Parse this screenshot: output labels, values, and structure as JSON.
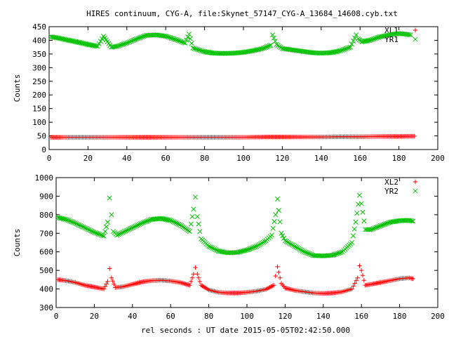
{
  "title": "HIRES continuum, CYG-A, file:Skynet_57147_CYG-A_13684_14608.cyb.txt",
  "xlabel": "rel seconds : UT date 2015-05-05T02:42:50.000",
  "colors": {
    "red": "#ff0000",
    "green": "#00c000",
    "axis": "#000000"
  },
  "chart_data": [
    {
      "type": "scatter",
      "ylabel": "Counts",
      "xlim": [
        0,
        200
      ],
      "ylim": [
        0,
        450
      ],
      "xticks": [
        0,
        20,
        40,
        60,
        80,
        100,
        120,
        140,
        160,
        180,
        200
      ],
      "yticks": [
        0,
        50,
        100,
        150,
        200,
        250,
        300,
        350,
        400,
        450
      ],
      "series": [
        {
          "name": "XL1",
          "marker": "+",
          "color": "#ff0000",
          "x": [
            1,
            10,
            20,
            30,
            40,
            50,
            60,
            70,
            80,
            90,
            100,
            110,
            120,
            130,
            140,
            150,
            160,
            170,
            180,
            188
          ],
          "y": [
            45,
            45,
            45,
            45,
            45,
            45,
            45,
            45,
            45,
            45,
            45,
            46,
            46,
            46,
            46,
            47,
            47,
            48,
            48,
            49
          ]
        },
        {
          "name": "YR1",
          "marker": "x",
          "color": "#00c000",
          "x": [
            1,
            5,
            10,
            15,
            20,
            25,
            28,
            30,
            32,
            35,
            40,
            45,
            50,
            55,
            60,
            65,
            70,
            72,
            74,
            77,
            80,
            85,
            90,
            95,
            100,
            105,
            110,
            114,
            115,
            117,
            120,
            125,
            130,
            135,
            140,
            145,
            150,
            155,
            158,
            159,
            161,
            165,
            170,
            175,
            180,
            183,
            186
          ],
          "y": [
            413,
            408,
            400,
            393,
            385,
            378,
            415,
            395,
            375,
            378,
            390,
            405,
            418,
            420,
            415,
            403,
            390,
            423,
            372,
            365,
            358,
            353,
            352,
            353,
            356,
            362,
            370,
            382,
            420,
            385,
            370,
            365,
            360,
            355,
            353,
            355,
            362,
            375,
            420,
            405,
            395,
            400,
            412,
            420,
            425,
            423,
            420
          ]
        }
      ]
    },
    {
      "type": "scatter",
      "ylabel": "Counts",
      "xlim": [
        0,
        200
      ],
      "ylim": [
        300,
        1000
      ],
      "xticks": [
        0,
        20,
        40,
        60,
        80,
        100,
        120,
        140,
        160,
        180,
        200
      ],
      "yticks": [
        300,
        400,
        500,
        600,
        700,
        800,
        900,
        1000
      ],
      "series": [
        {
          "name": "XL2",
          "marker": "+",
          "color": "#ff0000",
          "x": [
            1,
            5,
            10,
            15,
            20,
            25,
            27,
            28,
            29,
            31,
            35,
            40,
            45,
            50,
            55,
            60,
            65,
            70,
            72,
            73,
            74,
            76,
            80,
            85,
            90,
            95,
            100,
            105,
            110,
            114,
            115,
            116,
            118,
            120,
            125,
            130,
            135,
            140,
            145,
            150,
            155,
            158,
            159,
            160,
            162,
            165,
            170,
            175,
            180,
            185,
            187
          ],
          "y": [
            450,
            445,
            435,
            420,
            410,
            400,
            440,
            510,
            460,
            408,
            412,
            425,
            438,
            445,
            447,
            443,
            435,
            420,
            480,
            515,
            480,
            420,
            395,
            382,
            378,
            378,
            382,
            388,
            398,
            420,
            470,
            520,
            430,
            405,
            392,
            385,
            378,
            376,
            378,
            385,
            400,
            460,
            525,
            500,
            420,
            425,
            435,
            445,
            455,
            460,
            455
          ]
        },
        {
          "name": "YR2",
          "marker": "x",
          "color": "#00c000",
          "x": [
            1,
            5,
            10,
            15,
            20,
            25,
            27,
            28,
            29,
            30,
            32,
            35,
            40,
            45,
            50,
            55,
            60,
            65,
            70,
            72,
            73,
            74,
            76,
            80,
            85,
            90,
            95,
            100,
            105,
            110,
            113,
            115,
            116,
            118,
            120,
            125,
            130,
            135,
            140,
            145,
            150,
            155,
            157,
            159,
            160,
            162,
            165,
            170,
            175,
            180,
            185,
            187
          ],
          "y": [
            785,
            775,
            755,
            730,
            705,
            685,
            760,
            890,
            800,
            710,
            690,
            705,
            730,
            755,
            775,
            780,
            770,
            745,
            710,
            830,
            895,
            790,
            670,
            630,
            605,
            595,
            597,
            610,
            630,
            660,
            690,
            800,
            885,
            700,
            660,
            630,
            600,
            580,
            578,
            582,
            600,
            650,
            760,
            905,
            860,
            720,
            720,
            740,
            760,
            768,
            770,
            765
          ]
        }
      ]
    }
  ]
}
